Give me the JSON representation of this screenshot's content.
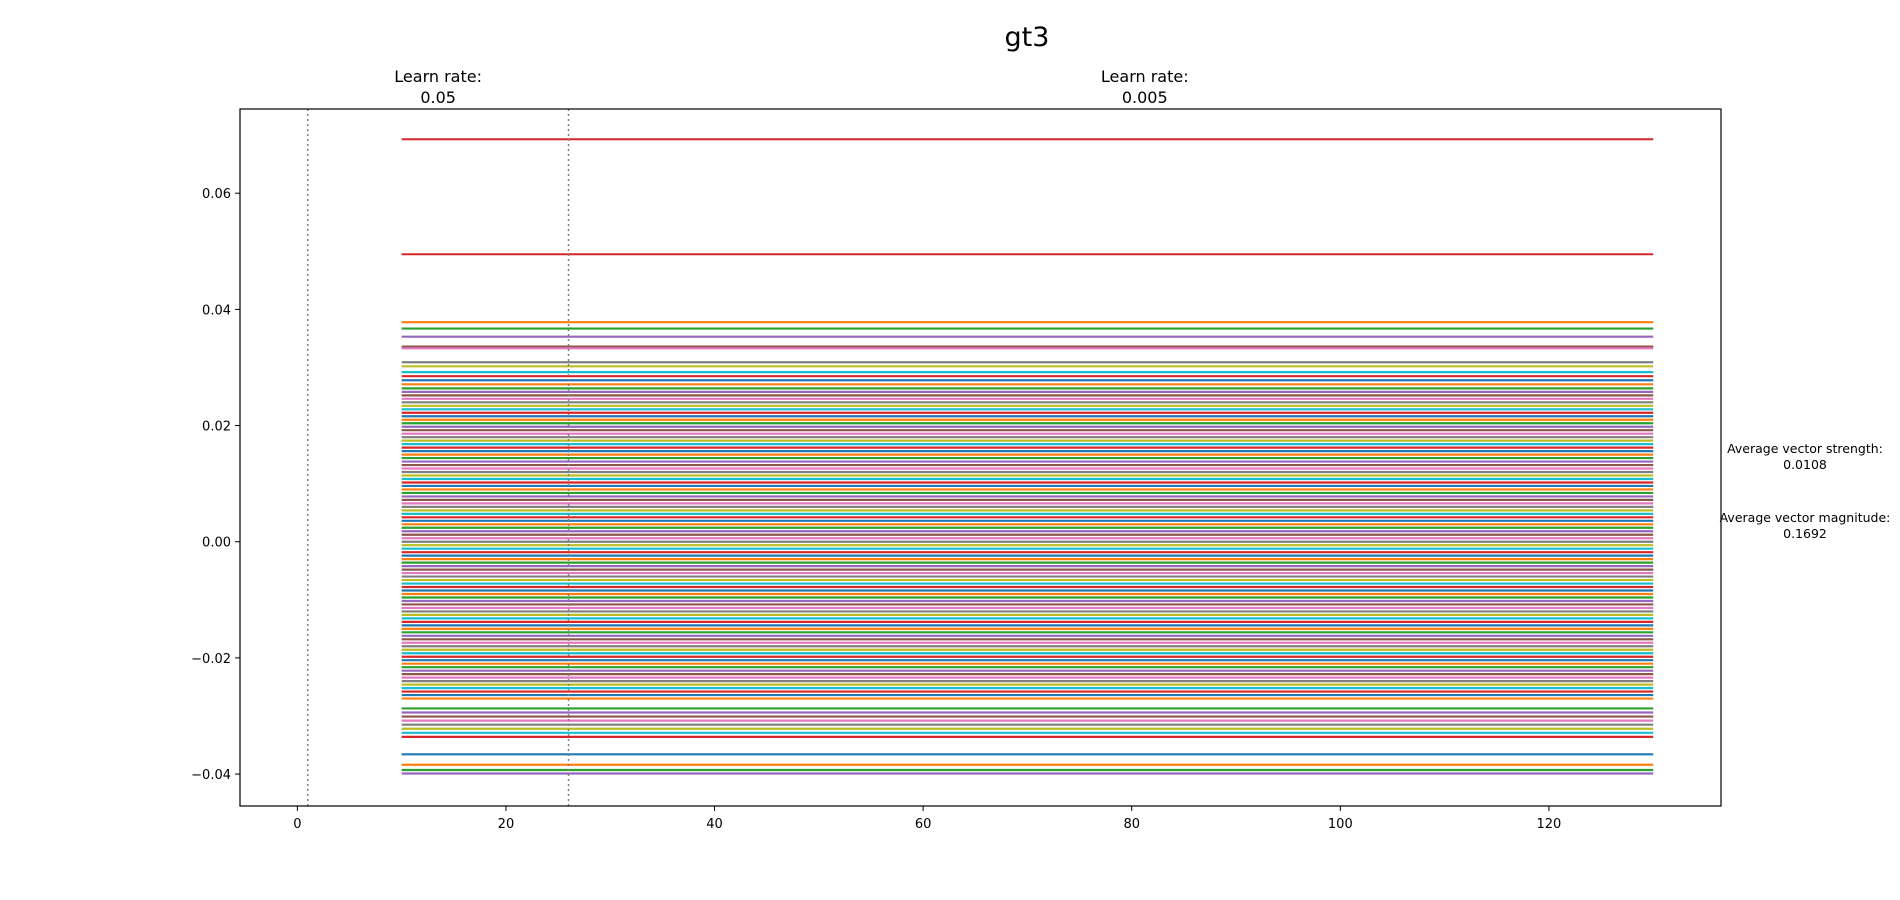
{
  "chart_data": {
    "type": "line",
    "title": "gt3",
    "xlabel": "",
    "ylabel": "",
    "xlim": [
      -5.5,
      136.5
    ],
    "ylim": [
      -0.0455,
      0.0745
    ],
    "grid": false,
    "x_ticks": [
      {
        "value": 0,
        "label": "0"
      },
      {
        "value": 20,
        "label": "20"
      },
      {
        "value": 40,
        "label": "40"
      },
      {
        "value": 60,
        "label": "60"
      },
      {
        "value": 80,
        "label": "80"
      },
      {
        "value": 100,
        "label": "100"
      },
      {
        "value": 120,
        "label": "120"
      }
    ],
    "y_ticks": [
      {
        "value": -0.04,
        "label": "−0.04"
      },
      {
        "value": -0.02,
        "label": "−0.02"
      },
      {
        "value": 0.0,
        "label": "0.00"
      },
      {
        "value": 0.02,
        "label": "0.02"
      },
      {
        "value": 0.04,
        "label": "0.04"
      },
      {
        "value": 0.06,
        "label": "0.06"
      }
    ],
    "phase_markers": [
      {
        "x": 1,
        "label_line1": "Learn rate:",
        "label_line2": "0.05"
      },
      {
        "x": 26,
        "label_line1": "Learn rate:",
        "label_line2": "0.005"
      }
    ],
    "stats": [
      {
        "label": "Average vector strength:",
        "value": "0.0108"
      },
      {
        "label": "Average vector magnitude:",
        "value": "0.1692"
      }
    ],
    "series_x_range": [
      10,
      130
    ],
    "series_levels": [
      0.0693,
      0.0495,
      0.0378,
      0.0367,
      0.0353,
      0.0336,
      0.0333,
      0.0309,
      0.0302,
      0.0292,
      0.0285,
      0.0278,
      0.0271,
      0.0264,
      0.0258,
      0.0252,
      0.0246,
      0.024,
      0.0234,
      0.0228,
      0.0222,
      0.0216,
      0.021,
      0.0204,
      0.0198,
      0.0192,
      0.0186,
      0.018,
      0.0174,
      0.0168,
      0.0162,
      0.0156,
      0.015,
      0.0144,
      0.0138,
      0.0132,
      0.0126,
      0.012,
      0.0114,
      0.0108,
      0.0102,
      0.0096,
      0.009,
      0.0084,
      0.0078,
      0.0072,
      0.0066,
      0.006,
      0.0054,
      0.0048,
      0.0042,
      0.0036,
      0.003,
      0.0024,
      0.0018,
      0.0012,
      0.0006,
      0.0,
      -0.0006,
      -0.0012,
      -0.0018,
      -0.0024,
      -0.003,
      -0.0036,
      -0.0042,
      -0.0048,
      -0.0054,
      -0.006,
      -0.0066,
      -0.0072,
      -0.0078,
      -0.0084,
      -0.009,
      -0.0096,
      -0.0102,
      -0.0108,
      -0.0114,
      -0.012,
      -0.0126,
      -0.0132,
      -0.0138,
      -0.0144,
      -0.015,
      -0.0156,
      -0.0162,
      -0.0168,
      -0.0174,
      -0.018,
      -0.0186,
      -0.0192,
      -0.0198,
      -0.0204,
      -0.021,
      -0.0216,
      -0.0222,
      -0.0228,
      -0.0234,
      -0.024,
      -0.0246,
      -0.0252,
      -0.0258,
      -0.0264,
      -0.027,
      -0.0287,
      -0.0294,
      -0.0301,
      -0.0308,
      -0.0315,
      -0.0322,
      -0.0329,
      -0.0336,
      -0.0366,
      -0.0384,
      -0.0393,
      -0.0399
    ],
    "series_colors": [
      "#d62728",
      "#1f77b4",
      "#ff7f0e",
      "#2ca02c",
      "#9467bd",
      "#8c564b",
      "#e377c2",
      "#7f7f7f",
      "#bcbd22",
      "#17becf"
    ]
  }
}
